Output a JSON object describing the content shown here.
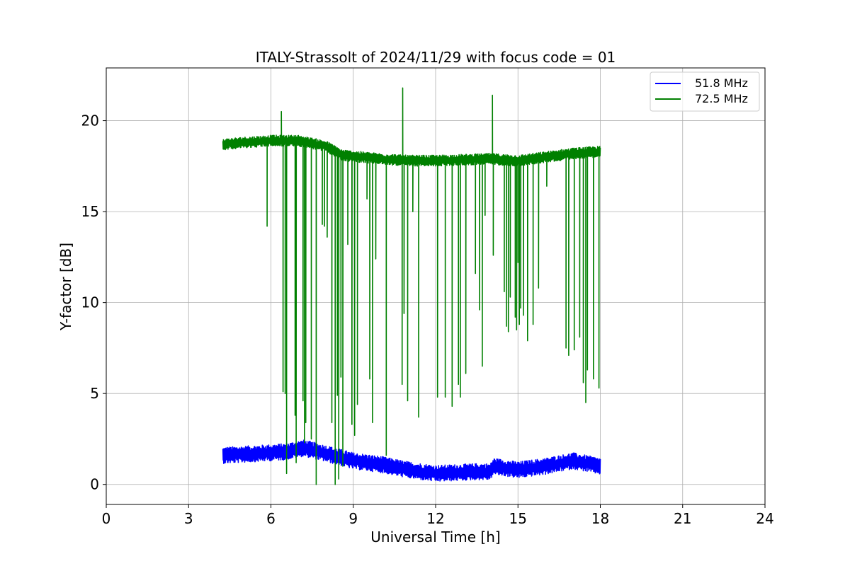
{
  "chart_data": {
    "type": "line",
    "title": "ITALY-Strassolt of 2024/11/29 with focus code = 01",
    "xlabel": "Universal Time [h]",
    "ylabel": "Y-factor [dB]",
    "xlim": [
      0,
      24
    ],
    "ylim": [
      -1.1,
      22.9
    ],
    "xticks": [
      0,
      3,
      6,
      9,
      12,
      15,
      18,
      21,
      24
    ],
    "yticks": [
      0,
      5,
      10,
      15,
      20
    ],
    "grid": true,
    "legend_position": "top-right",
    "series": [
      {
        "name": "51.8 MHz",
        "color": "#0000ff",
        "x_range": [
          4.25,
          18.0
        ],
        "baseline": [
          [
            4.25,
            1.6
          ],
          [
            5.5,
            1.7
          ],
          [
            6.5,
            1.8
          ],
          [
            7.2,
            2.0
          ],
          [
            8.0,
            1.7
          ],
          [
            9.0,
            1.3
          ],
          [
            10.0,
            1.1
          ],
          [
            11.0,
            0.8
          ],
          [
            12.0,
            0.6
          ],
          [
            13.5,
            0.7
          ],
          [
            14.0,
            0.7
          ],
          [
            14.1,
            1.0
          ],
          [
            15.0,
            0.8
          ],
          [
            16.0,
            1.0
          ],
          [
            17.0,
            1.3
          ],
          [
            18.0,
            1.0
          ]
        ],
        "band_halfwidth": 0.45,
        "spikes": []
      },
      {
        "name": "72.5 MHz",
        "color": "#008000",
        "x_range": [
          4.25,
          18.0
        ],
        "baseline": [
          [
            4.25,
            18.7
          ],
          [
            5.0,
            18.8
          ],
          [
            6.0,
            18.9
          ],
          [
            7.0,
            18.9
          ],
          [
            8.0,
            18.6
          ],
          [
            8.6,
            18.1
          ],
          [
            10.0,
            17.9
          ],
          [
            11.0,
            17.8
          ],
          [
            12.0,
            17.8
          ],
          [
            14.0,
            17.9
          ],
          [
            15.0,
            17.8
          ],
          [
            16.0,
            18.0
          ],
          [
            17.0,
            18.2
          ],
          [
            18.0,
            18.3
          ]
        ],
        "band_halfwidth": 0.3,
        "spikes": [
          [
            5.86,
            14.2
          ],
          [
            6.38,
            20.5
          ],
          [
            6.44,
            5.1
          ],
          [
            6.52,
            5.0
          ],
          [
            6.57,
            0.6
          ],
          [
            6.88,
            3.8
          ],
          [
            6.92,
            1.2
          ],
          [
            7.17,
            4.6
          ],
          [
            7.22,
            2.3
          ],
          [
            7.27,
            3.4
          ],
          [
            7.47,
            2.5
          ],
          [
            7.65,
            0.0
          ],
          [
            7.87,
            14.3
          ],
          [
            7.95,
            14.2
          ],
          [
            8.05,
            13.6
          ],
          [
            8.22,
            3.4
          ],
          [
            8.34,
            0.0
          ],
          [
            8.42,
            4.9
          ],
          [
            8.47,
            0.3
          ],
          [
            8.55,
            5.9
          ],
          [
            8.62,
            1.0
          ],
          [
            8.8,
            13.2
          ],
          [
            8.95,
            3.3
          ],
          [
            9.05,
            2.7
          ],
          [
            9.15,
            4.4
          ],
          [
            9.5,
            15.7
          ],
          [
            9.6,
            5.8
          ],
          [
            9.7,
            3.4
          ],
          [
            9.82,
            12.4
          ],
          [
            10.2,
            1.6
          ],
          [
            10.78,
            5.5
          ],
          [
            10.8,
            21.8
          ],
          [
            10.85,
            9.4
          ],
          [
            10.98,
            4.6
          ],
          [
            11.17,
            15.0
          ],
          [
            11.38,
            3.7
          ],
          [
            12.07,
            4.8
          ],
          [
            12.35,
            4.8
          ],
          [
            12.6,
            4.3
          ],
          [
            12.83,
            5.5
          ],
          [
            12.9,
            4.8
          ],
          [
            13.1,
            6.1
          ],
          [
            13.45,
            11.6
          ],
          [
            13.6,
            9.6
          ],
          [
            13.7,
            6.5
          ],
          [
            13.8,
            14.8
          ],
          [
            14.07,
            21.4
          ],
          [
            14.1,
            12.6
          ],
          [
            14.5,
            10.6
          ],
          [
            14.58,
            8.7
          ],
          [
            14.65,
            8.4
          ],
          [
            14.72,
            10.3
          ],
          [
            14.9,
            9.2
          ],
          [
            14.95,
            8.5
          ],
          [
            15.0,
            12.2
          ],
          [
            15.05,
            8.8
          ],
          [
            15.1,
            9.7
          ],
          [
            15.2,
            9.3
          ],
          [
            15.35,
            7.9
          ],
          [
            15.55,
            8.8
          ],
          [
            15.75,
            10.8
          ],
          [
            16.05,
            16.4
          ],
          [
            16.75,
            7.5
          ],
          [
            16.85,
            7.1
          ],
          [
            17.05,
            7.4
          ],
          [
            17.25,
            8.1
          ],
          [
            17.38,
            5.6
          ],
          [
            17.47,
            4.5
          ],
          [
            17.53,
            6.3
          ],
          [
            17.75,
            5.8
          ],
          [
            17.95,
            5.3
          ]
        ]
      }
    ]
  }
}
